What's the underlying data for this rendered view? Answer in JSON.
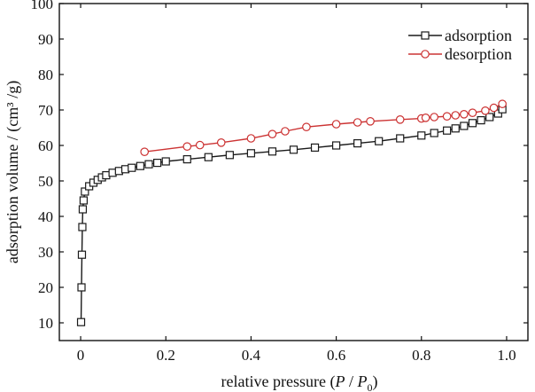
{
  "chart_data": {
    "type": "scatter",
    "xlabel": "relative pressure (P / P0)",
    "xlabel_parts": {
      "prefix": "relative pressure (",
      "p": "P",
      "slash": " / ",
      "p0": "P",
      "sub": "0",
      "suffix": ")"
    },
    "ylabel": "adsorption volume / (cm³ /g)",
    "xlim": [
      -0.05,
      1.05
    ],
    "ylim": [
      5,
      100
    ],
    "xticks": [
      0,
      0.2,
      0.4,
      0.6,
      0.8,
      1.0
    ],
    "xtick_labels": [
      "0",
      "0.2",
      "0.4",
      "0.6",
      "0.8",
      "1.0"
    ],
    "yticks": [
      10,
      20,
      30,
      40,
      50,
      60,
      70,
      80,
      90,
      100
    ],
    "ytick_labels": [
      "10",
      "20",
      "30",
      "40",
      "50",
      "60",
      "70",
      "80",
      "90",
      "100"
    ],
    "legend_position": "top-right",
    "series": [
      {
        "name": "adsorption",
        "marker": "square",
        "color": "#1a1a1a",
        "x": [
          0.001,
          0.002,
          0.003,
          0.004,
          0.005,
          0.007,
          0.01,
          0.02,
          0.03,
          0.04,
          0.05,
          0.06,
          0.075,
          0.09,
          0.105,
          0.12,
          0.14,
          0.16,
          0.18,
          0.2,
          0.25,
          0.3,
          0.35,
          0.4,
          0.45,
          0.5,
          0.55,
          0.6,
          0.65,
          0.7,
          0.75,
          0.8,
          0.83,
          0.86,
          0.88,
          0.9,
          0.92,
          0.94,
          0.96,
          0.98,
          0.99
        ],
        "y": [
          10.2,
          20.0,
          29.2,
          37.0,
          42.0,
          44.5,
          47.0,
          48.5,
          49.5,
          50.3,
          51.0,
          51.6,
          52.3,
          52.8,
          53.3,
          53.7,
          54.2,
          54.7,
          55.1,
          55.5,
          56.1,
          56.7,
          57.3,
          57.8,
          58.3,
          58.8,
          59.4,
          60.0,
          60.6,
          61.2,
          62.0,
          62.8,
          63.5,
          64.2,
          64.8,
          65.5,
          66.3,
          67.1,
          68.0,
          69.0,
          70.2
        ]
      },
      {
        "name": "desorption",
        "marker": "circle",
        "color": "#cc3333",
        "x": [
          0.15,
          0.25,
          0.28,
          0.33,
          0.4,
          0.45,
          0.48,
          0.53,
          0.6,
          0.65,
          0.68,
          0.75,
          0.8,
          0.81,
          0.83,
          0.86,
          0.88,
          0.9,
          0.92,
          0.95,
          0.97,
          0.99
        ],
        "y": [
          58.2,
          59.7,
          60.1,
          60.8,
          62.0,
          63.2,
          64.0,
          65.2,
          66.0,
          66.5,
          66.8,
          67.3,
          67.6,
          67.8,
          68.0,
          68.2,
          68.5,
          68.8,
          69.2,
          69.8,
          70.6,
          71.7
        ]
      }
    ]
  }
}
